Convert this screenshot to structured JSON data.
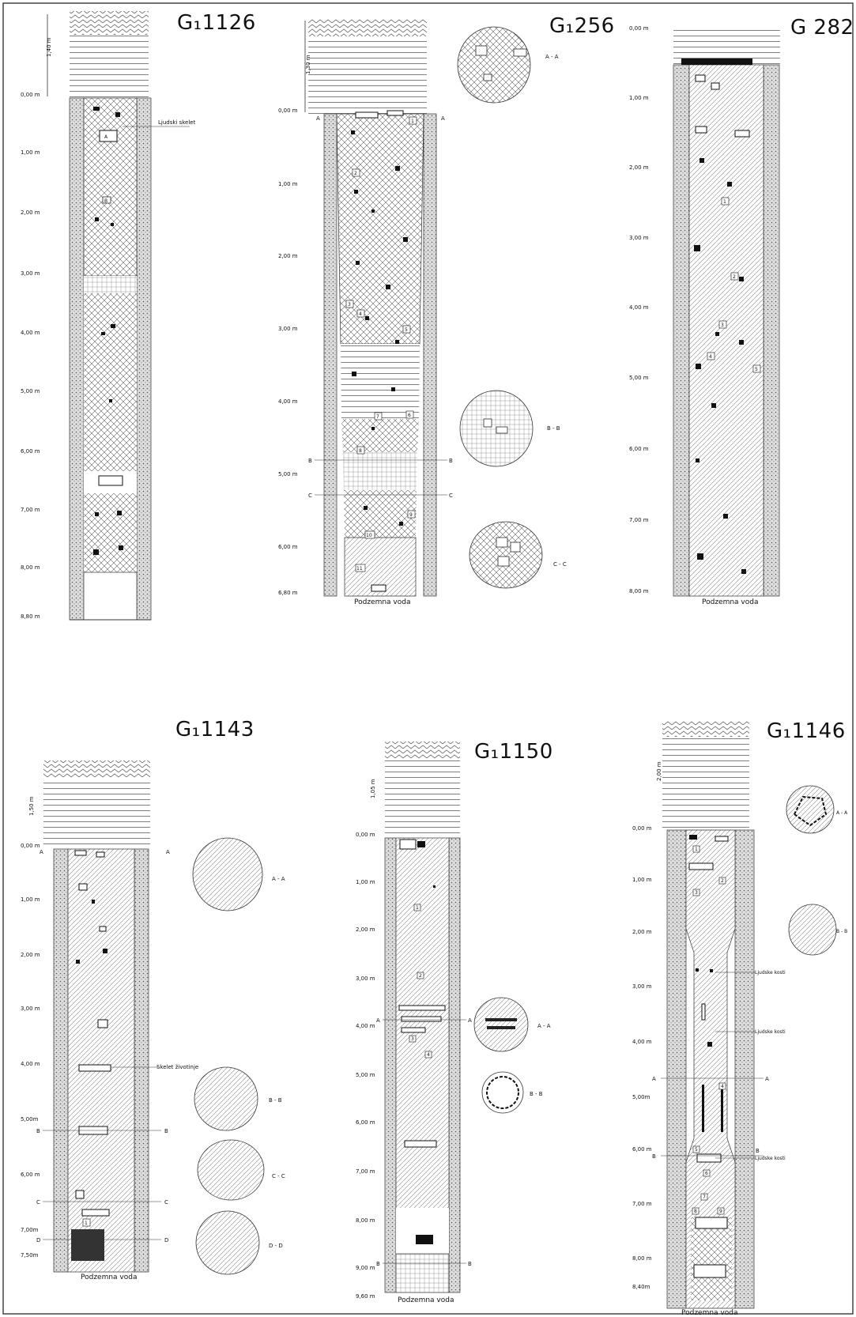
{
  "wells": [
    {
      "id": "g1126",
      "title": "G₁1126",
      "overburden_label": "1,40 m",
      "depth_labels": [
        "0,00 m",
        "1,00 m",
        "2,00 m",
        "3,00 m",
        "4,00 m",
        "5,00 m",
        "6,00 m",
        "7,00 m",
        "8,00 m",
        "8,80 m"
      ],
      "annotations": [
        "Ljudski skelet"
      ],
      "layer_numbers": [
        "A",
        "B"
      ]
    },
    {
      "id": "g1256",
      "title": "G₁256",
      "overburden_label": "1,30 m",
      "depth_labels": [
        "0,00 m",
        "1,00 m",
        "2,00 m",
        "3,00 m",
        "4,00 m",
        "5,00 m",
        "6,00 m",
        "6,80 m"
      ],
      "section_marks": [
        "A",
        "A",
        "B",
        "B",
        "C",
        "C"
      ],
      "layer_numbers": [
        "1",
        "2",
        "3",
        "4",
        "5",
        "6",
        "7",
        "8",
        "9",
        "10",
        "11"
      ],
      "cross_sections": [
        "A - A",
        "B - B",
        "C - C"
      ],
      "bottom_label": "Podzemna voda"
    },
    {
      "id": "g282",
      "title": "G 282",
      "depth_labels": [
        "0,00 m",
        "1,00 m",
        "2,00 m",
        "3,00 m",
        "4,00 m",
        "5,00 m",
        "6,00 m",
        "7,00 m",
        "8,00 m"
      ],
      "layer_numbers": [
        "1",
        "2",
        "3",
        "4",
        "5"
      ],
      "bottom_label": "Podzemna voda"
    },
    {
      "id": "g1143",
      "title": "G₁1143",
      "overburden_label": "1,50 m",
      "depth_labels": [
        "0,00 m",
        "1,00 m",
        "2,00 m",
        "3,00 m",
        "4,00 m",
        "5,00m",
        "6,00 m",
        "7,00m",
        "7,50m"
      ],
      "section_marks": [
        "A",
        "A",
        "B",
        "B",
        "C",
        "C",
        "D",
        "D"
      ],
      "annotations": [
        "Skelet životinje"
      ],
      "layer_numbers": [
        "1"
      ],
      "cross_sections": [
        "A - A",
        "B - B",
        "C - C",
        "D - D"
      ],
      "bottom_label": "Podzemna voda"
    },
    {
      "id": "g1150",
      "title": "G₁1150",
      "overburden_label": "1,05 m",
      "depth_labels": [
        "0,00 m",
        "1,00 m",
        "2,00 m",
        "3,00 m",
        "4,00 m",
        "5,00 m",
        "6,00 m",
        "7,00 m",
        "8,00 m",
        "9,00 m",
        "9,60 m"
      ],
      "section_marks": [
        "A",
        "A",
        "B",
        "B"
      ],
      "layer_numbers": [
        "1",
        "2",
        "3",
        "4"
      ],
      "cross_sections": [
        "A - A",
        "B - B"
      ],
      "bottom_label": "Podzemna voda"
    },
    {
      "id": "g1146",
      "title": "G₁1146",
      "overburden_label": "2,00 m",
      "depth_labels": [
        "0,00 m",
        "1,00 m",
        "2,00 m",
        "3,00 m",
        "4,00 m",
        "5,00m",
        "6,00 m",
        "7,00 m",
        "8,00 m",
        "8,40m"
      ],
      "section_marks": [
        "A",
        "A",
        "B",
        "B"
      ],
      "annotations": [
        "Ljudske kosti",
        "Ljudske kosti",
        "Ljudske kosti"
      ],
      "layer_numbers": [
        "1",
        "2",
        "3",
        "4",
        "5",
        "6",
        "7",
        "8",
        "9"
      ],
      "cross_sections": [
        "A - A",
        "B - B"
      ],
      "bottom_label": "Podzemna voda"
    }
  ]
}
